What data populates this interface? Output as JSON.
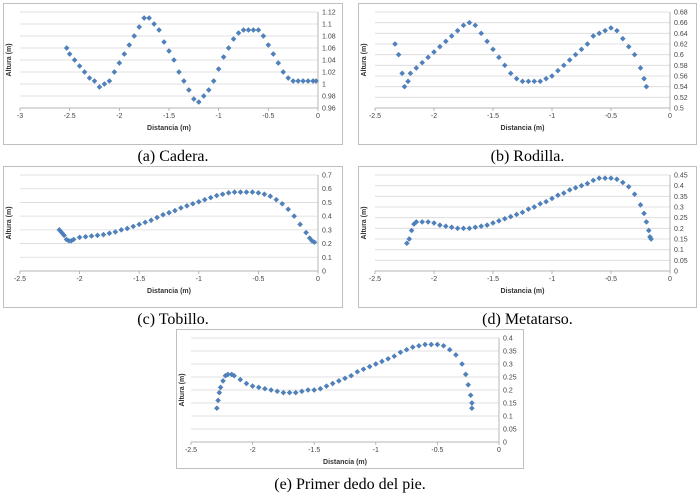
{
  "colors": {
    "marker": "#4f81bd",
    "grid": "#d9d9d9",
    "axis": "#a6a6a6"
  },
  "chart_data": [
    {
      "id": "a",
      "type": "scatter",
      "caption": "(a) Cadera.",
      "xlabel": "Distancia (m)",
      "ylabel": "Altura (m)",
      "xlim": [
        -3,
        0
      ],
      "ylim": [
        0.96,
        1.12
      ],
      "xticks": [
        -3,
        -2.5,
        -2,
        -1.5,
        -1,
        -0.5,
        0
      ],
      "yticks": [
        0.96,
        0.98,
        1,
        1.02,
        1.04,
        1.06,
        1.08,
        1.1,
        1.12
      ],
      "xtick_labels": [
        "-3",
        "-2.5",
        "-2",
        "-1.5",
        "-1",
        "-0.5",
        "0"
      ],
      "ytick_labels": [
        "0.96",
        "0.98",
        "1",
        "1.02",
        "1.04",
        "1.06",
        "1.08",
        "1.1",
        "1.12"
      ],
      "grid": true,
      "yaxis_side": "right",
      "x": [
        -2.53,
        -2.5,
        -2.45,
        -2.4,
        -2.35,
        -2.3,
        -2.25,
        -2.2,
        -2.15,
        -2.1,
        -2.05,
        -2.0,
        -1.95,
        -1.9,
        -1.85,
        -1.8,
        -1.75,
        -1.7,
        -1.65,
        -1.6,
        -1.55,
        -1.5,
        -1.45,
        -1.4,
        -1.35,
        -1.3,
        -1.25,
        -1.2,
        -1.15,
        -1.1,
        -1.05,
        -1.0,
        -0.95,
        -0.9,
        -0.85,
        -0.8,
        -0.75,
        -0.7,
        -0.65,
        -0.6,
        -0.55,
        -0.5,
        -0.45,
        -0.4,
        -0.35,
        -0.3,
        -0.25,
        -0.2,
        -0.15,
        -0.1,
        -0.05,
        -0.02
      ],
      "y": [
        1.06,
        1.05,
        1.04,
        1.03,
        1.02,
        1.01,
        1.005,
        0.995,
        1.0,
        1.005,
        1.02,
        1.035,
        1.05,
        1.065,
        1.08,
        1.095,
        1.11,
        1.11,
        1.1,
        1.09,
        1.07,
        1.055,
        1.04,
        1.02,
        1.005,
        0.99,
        0.975,
        0.97,
        0.98,
        0.99,
        1.005,
        1.025,
        1.045,
        1.06,
        1.075,
        1.085,
        1.09,
        1.09,
        1.09,
        1.09,
        1.08,
        1.065,
        1.05,
        1.035,
        1.02,
        1.01,
        1.005,
        1.005,
        1.005,
        1.005,
        1.005,
        1.005
      ]
    },
    {
      "id": "b",
      "type": "scatter",
      "caption": "(b) Rodilla.",
      "xlabel": "Distancia (m)",
      "ylabel": "Altura (m)",
      "xlim": [
        -2.5,
        0
      ],
      "ylim": [
        0.5,
        0.68
      ],
      "xticks": [
        -2.5,
        -2,
        -1.5,
        -1,
        -0.5,
        0
      ],
      "yticks": [
        0.5,
        0.52,
        0.54,
        0.56,
        0.58,
        0.6,
        0.62,
        0.64,
        0.66,
        0.68
      ],
      "xtick_labels": [
        "-2.5",
        "-2",
        "-1.5",
        "-1",
        "-0.5",
        "0"
      ],
      "ytick_labels": [
        "0.5",
        "0.52",
        "0.54",
        "0.56",
        "0.58",
        "0.6",
        "0.62",
        "0.64",
        "0.66",
        "0.68"
      ],
      "grid": true,
      "yaxis_side": "right",
      "x": [
        -2.33,
        -2.3,
        -2.27,
        -2.25,
        -2.22,
        -2.2,
        -2.15,
        -2.1,
        -2.05,
        -2.0,
        -1.95,
        -1.9,
        -1.85,
        -1.8,
        -1.75,
        -1.7,
        -1.65,
        -1.6,
        -1.55,
        -1.5,
        -1.45,
        -1.4,
        -1.35,
        -1.3,
        -1.25,
        -1.2,
        -1.15,
        -1.1,
        -1.05,
        -1.0,
        -0.95,
        -0.9,
        -0.85,
        -0.8,
        -0.75,
        -0.7,
        -0.65,
        -0.6,
        -0.55,
        -0.5,
        -0.45,
        -0.4,
        -0.35,
        -0.3,
        -0.25,
        -0.22,
        -0.2
      ],
      "y": [
        0.62,
        0.6,
        0.565,
        0.54,
        0.55,
        0.565,
        0.575,
        0.585,
        0.595,
        0.605,
        0.615,
        0.625,
        0.635,
        0.645,
        0.655,
        0.66,
        0.655,
        0.64,
        0.625,
        0.61,
        0.595,
        0.58,
        0.565,
        0.555,
        0.55,
        0.55,
        0.55,
        0.55,
        0.555,
        0.56,
        0.57,
        0.58,
        0.59,
        0.6,
        0.61,
        0.62,
        0.635,
        0.64,
        0.645,
        0.65,
        0.645,
        0.63,
        0.615,
        0.6,
        0.575,
        0.555,
        0.54
      ]
    },
    {
      "id": "c",
      "type": "scatter",
      "caption": "(c) Tobillo.",
      "xlabel": "Distancia (m)",
      "ylabel": "Altura (m)",
      "xlim": [
        -2.5,
        0
      ],
      "ylim": [
        0,
        0.7
      ],
      "xticks": [
        -2.5,
        -2,
        -1.5,
        -1,
        -0.5,
        0
      ],
      "yticks": [
        0,
        0.1,
        0.2,
        0.3,
        0.4,
        0.5,
        0.6,
        0.7
      ],
      "xtick_labels": [
        "-2.5",
        "-2",
        "-1.5",
        "-1",
        "-0.5",
        "0"
      ],
      "ytick_labels": [
        "0",
        "0.1",
        "0.2",
        "0.3",
        "0.4",
        "0.5",
        "0.6",
        "0.7"
      ],
      "grid": true,
      "yaxis_side": "right",
      "x": [
        -2.17,
        -2.15,
        -2.13,
        -2.11,
        -2.09,
        -2.07,
        -2.05,
        -2.0,
        -1.95,
        -1.9,
        -1.85,
        -1.8,
        -1.75,
        -1.7,
        -1.65,
        -1.6,
        -1.55,
        -1.5,
        -1.45,
        -1.4,
        -1.35,
        -1.3,
        -1.25,
        -1.2,
        -1.15,
        -1.1,
        -1.05,
        -1.0,
        -0.95,
        -0.9,
        -0.85,
        -0.8,
        -0.75,
        -0.7,
        -0.65,
        -0.6,
        -0.55,
        -0.5,
        -0.45,
        -0.4,
        -0.35,
        -0.3,
        -0.25,
        -0.2,
        -0.15,
        -0.1,
        -0.07,
        -0.05,
        -0.03
      ],
      "y": [
        0.3,
        0.28,
        0.26,
        0.23,
        0.22,
        0.22,
        0.23,
        0.245,
        0.25,
        0.255,
        0.26,
        0.265,
        0.275,
        0.285,
        0.3,
        0.31,
        0.325,
        0.34,
        0.355,
        0.37,
        0.39,
        0.41,
        0.425,
        0.44,
        0.46,
        0.475,
        0.49,
        0.505,
        0.52,
        0.535,
        0.55,
        0.56,
        0.57,
        0.575,
        0.575,
        0.575,
        0.575,
        0.57,
        0.56,
        0.545,
        0.52,
        0.49,
        0.45,
        0.4,
        0.34,
        0.28,
        0.24,
        0.22,
        0.21
      ]
    },
    {
      "id": "d",
      "type": "scatter",
      "caption": "(d) Metatarso.",
      "xlabel": "Distancia (m)",
      "ylabel": "Altura (m)",
      "xlim": [
        -2.5,
        0
      ],
      "ylim": [
        0,
        0.45
      ],
      "xticks": [
        -2.5,
        -2,
        -1.5,
        -1,
        -0.5,
        0
      ],
      "yticks": [
        0,
        0.05,
        0.1,
        0.15,
        0.2,
        0.25,
        0.3,
        0.35,
        0.4,
        0.45
      ],
      "xtick_labels": [
        "-2.5",
        "-2",
        "-1.5",
        "-1",
        "-0.5",
        "0"
      ],
      "ytick_labels": [
        "0",
        "0.05",
        "0.1",
        "0.15",
        "0.2",
        "0.25",
        "0.3",
        "0.35",
        "0.4",
        "0.45"
      ],
      "grid": true,
      "yaxis_side": "right",
      "x": [
        -2.23,
        -2.21,
        -2.19,
        -2.17,
        -2.15,
        -2.1,
        -2.05,
        -2.0,
        -1.95,
        -1.9,
        -1.85,
        -1.8,
        -1.75,
        -1.7,
        -1.65,
        -1.6,
        -1.55,
        -1.5,
        -1.45,
        -1.4,
        -1.35,
        -1.3,
        -1.25,
        -1.2,
        -1.15,
        -1.1,
        -1.05,
        -1.0,
        -0.95,
        -0.9,
        -0.85,
        -0.8,
        -0.75,
        -0.7,
        -0.65,
        -0.6,
        -0.55,
        -0.5,
        -0.45,
        -0.4,
        -0.35,
        -0.3,
        -0.25,
        -0.22,
        -0.2,
        -0.18,
        -0.17,
        -0.16
      ],
      "y": [
        0.13,
        0.15,
        0.19,
        0.22,
        0.23,
        0.23,
        0.23,
        0.225,
        0.215,
        0.21,
        0.205,
        0.2,
        0.2,
        0.2,
        0.205,
        0.21,
        0.215,
        0.225,
        0.235,
        0.245,
        0.255,
        0.265,
        0.275,
        0.29,
        0.3,
        0.315,
        0.325,
        0.34,
        0.355,
        0.365,
        0.38,
        0.39,
        0.4,
        0.41,
        0.425,
        0.435,
        0.435,
        0.435,
        0.43,
        0.415,
        0.395,
        0.36,
        0.31,
        0.27,
        0.23,
        0.19,
        0.16,
        0.15
      ]
    },
    {
      "id": "e",
      "type": "scatter",
      "caption": "(e) Primer dedo del pie.",
      "xlabel": "Distancia (m)",
      "ylabel": "Altura (m)",
      "xlim": [
        -2.5,
        0
      ],
      "ylim": [
        0,
        0.4
      ],
      "xticks": [
        -2.5,
        -2,
        -1.5,
        -1,
        -0.5,
        0
      ],
      "yticks": [
        0,
        0.05,
        0.1,
        0.15,
        0.2,
        0.25,
        0.3,
        0.35,
        0.4
      ],
      "xtick_labels": [
        "-2.5",
        "-2",
        "-1.5",
        "-1",
        "-0.5",
        "0"
      ],
      "ytick_labels": [
        "0",
        "0.05",
        "0.1",
        "0.15",
        "0.2",
        "0.25",
        "0.3",
        "0.35",
        "0.4"
      ],
      "grid": true,
      "yaxis_side": "right",
      "x": [
        -2.29,
        -2.28,
        -2.27,
        -2.26,
        -2.24,
        -2.22,
        -2.2,
        -2.17,
        -2.15,
        -2.1,
        -2.05,
        -2.0,
        -1.95,
        -1.9,
        -1.85,
        -1.8,
        -1.75,
        -1.7,
        -1.65,
        -1.6,
        -1.55,
        -1.5,
        -1.45,
        -1.4,
        -1.35,
        -1.3,
        -1.25,
        -1.2,
        -1.15,
        -1.1,
        -1.05,
        -1.0,
        -0.95,
        -0.9,
        -0.85,
        -0.8,
        -0.75,
        -0.7,
        -0.65,
        -0.6,
        -0.55,
        -0.5,
        -0.45,
        -0.4,
        -0.35,
        -0.3,
        -0.27,
        -0.25,
        -0.23,
        -0.22,
        -0.22
      ],
      "y": [
        0.13,
        0.16,
        0.19,
        0.21,
        0.235,
        0.255,
        0.26,
        0.26,
        0.255,
        0.24,
        0.225,
        0.215,
        0.21,
        0.205,
        0.2,
        0.195,
        0.19,
        0.19,
        0.19,
        0.195,
        0.2,
        0.2,
        0.205,
        0.215,
        0.225,
        0.235,
        0.245,
        0.255,
        0.27,
        0.28,
        0.29,
        0.3,
        0.31,
        0.32,
        0.33,
        0.345,
        0.355,
        0.365,
        0.37,
        0.375,
        0.375,
        0.375,
        0.37,
        0.355,
        0.335,
        0.3,
        0.26,
        0.22,
        0.18,
        0.15,
        0.13
      ]
    }
  ]
}
